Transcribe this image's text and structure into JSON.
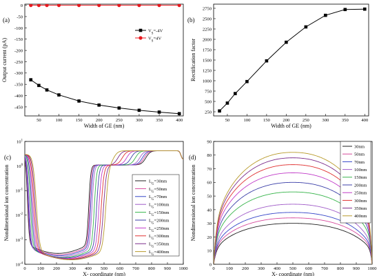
{
  "chart_data": [
    {
      "id": "a",
      "panel_label": "(a)",
      "type": "line",
      "xlabel": "Width of GE (nm)",
      "ylabel": "Output current (pA)",
      "xlim": [
        15,
        410
      ],
      "ylim": [
        -490,
        5
      ],
      "xticks": [
        50,
        100,
        150,
        200,
        250,
        300,
        350,
        400
      ],
      "yticks": [
        0,
        -50,
        -100,
        -150,
        -200,
        -250,
        -300,
        -350,
        -400,
        -450
      ],
      "x": [
        30,
        50,
        70,
        100,
        150,
        200,
        250,
        300,
        350,
        400
      ],
      "series": [
        {
          "name_main": "V",
          "name_sub": "S",
          "name_tail": "=-4V",
          "color": "#000000",
          "marker": "square",
          "values": [
            -330,
            -355,
            -375,
            -397,
            -424,
            -442,
            -455,
            -465,
            -473,
            -480
          ]
        },
        {
          "name_main": "V",
          "name_sub": "S",
          "name_tail": "=4V",
          "color": "#e8191f",
          "marker": "circle",
          "values": [
            0,
            0,
            0,
            0,
            0,
            0,
            0,
            0,
            0,
            0
          ]
        }
      ]
    },
    {
      "id": "b",
      "panel_label": "(b)",
      "type": "line",
      "xlabel": "Width of GE (nm)",
      "ylabel": "Rectification factor",
      "xlim": [
        15,
        410
      ],
      "ylim": [
        150,
        2850
      ],
      "xticks": [
        50,
        100,
        150,
        200,
        250,
        300,
        350,
        400
      ],
      "yticks": [
        250,
        500,
        750,
        1000,
        1250,
        1500,
        1750,
        2000,
        2250,
        2500,
        2750
      ],
      "x": [
        30,
        50,
        70,
        100,
        150,
        200,
        250,
        300,
        350,
        400
      ],
      "series": [
        {
          "color": "#000000",
          "marker": "square",
          "values": [
            270,
            460,
            690,
            980,
            1480,
            1930,
            2300,
            2580,
            2720,
            2730
          ]
        }
      ]
    },
    {
      "id": "c",
      "panel_label": "(c)",
      "type": "line",
      "scale_y": "log",
      "xlabel": "X- coordinate (nm)",
      "ylabel": "Nondimensional ion concentration",
      "xlim": [
        0,
        1000
      ],
      "ylim": [
        0.0001,
        10
      ],
      "xticks": [
        0,
        100,
        200,
        300,
        400,
        500,
        600,
        700,
        800,
        900,
        1000
      ],
      "yticks": [
        {
          "v": 0.0001,
          "base": "10",
          "exp": "-4"
        },
        {
          "v": 0.001,
          "base": "10",
          "exp": "-3"
        },
        {
          "v": 0.01,
          "base": "10",
          "exp": "-2"
        },
        {
          "v": 0.1,
          "base": "10",
          "exp": "-1"
        },
        {
          "v": 1,
          "base": "10",
          "exp": "0"
        },
        {
          "v": 10,
          "base": "10",
          "exp": "1"
        }
      ],
      "series": [
        {
          "name_main": "L",
          "name_sub": "G",
          "name_tail": "=30nm",
          "color": "#1f1f1f",
          "L": 30,
          "min": 0.00062
        },
        {
          "name_main": "L",
          "name_sub": "G",
          "name_tail": "=50nm",
          "color": "#d6489b",
          "L": 50,
          "min": 0.00055
        },
        {
          "name_main": "L",
          "name_sub": "G",
          "name_tail": "=70nm",
          "color": "#3445c8",
          "L": 70,
          "min": 0.0005
        },
        {
          "name_main": "L",
          "name_sub": "G",
          "name_tail": "=100nm",
          "color": "#a05bc8",
          "L": 100,
          "min": 0.00045
        },
        {
          "name_main": "L",
          "name_sub": "G",
          "name_tail": "=150nm",
          "color": "#36b44a",
          "L": 150,
          "min": 0.00042
        },
        {
          "name_main": "L",
          "name_sub": "G",
          "name_tail": "=200nm",
          "color": "#3b3fa8",
          "L": 200,
          "min": 0.0004
        },
        {
          "name_main": "L",
          "name_sub": "G",
          "name_tail": "=250nm",
          "color": "#c03ac8",
          "L": 250,
          "min": 0.00038
        },
        {
          "name_main": "L",
          "name_sub": "G",
          "name_tail": "=300nm",
          "color": "#e03030",
          "L": 300,
          "min": 0.00036
        },
        {
          "name_main": "L",
          "name_sub": "G",
          "name_tail": "=350nm",
          "color": "#7a2a8a",
          "L": 350,
          "min": 0.00035
        },
        {
          "name_main": "L",
          "name_sub": "G",
          "name_tail": "=400nm",
          "color": "#b89a2a",
          "L": 400,
          "min": 0.00034
        }
      ]
    },
    {
      "id": "d",
      "panel_label": "(d)",
      "type": "line",
      "xlabel": "X- coordinate (nm)",
      "ylabel": "Nondimensional ion concentration",
      "xlim": [
        0,
        1000
      ],
      "ylim": [
        0,
        90
      ],
      "xticks": [
        0,
        100,
        200,
        300,
        400,
        500,
        600,
        700,
        800,
        900,
        1000
      ],
      "yticks": [
        0,
        10,
        20,
        30,
        40,
        50,
        60,
        70,
        80,
        90
      ],
      "series": [
        {
          "name": "30nm",
          "color": "#1f1f1f",
          "peak": 30
        },
        {
          "name": "50nm",
          "color": "#d6489b",
          "peak": 34
        },
        {
          "name": "70nm",
          "color": "#3445c8",
          "peak": 38
        },
        {
          "name": "100nm",
          "color": "#a05bc8",
          "peak": 44
        },
        {
          "name": "150nm",
          "color": "#36b44a",
          "peak": 53
        },
        {
          "name": "200nm",
          "color": "#3b3fa8",
          "peak": 60
        },
        {
          "name": "250nm",
          "color": "#c03ac8",
          "peak": 67
        },
        {
          "name": "300nm",
          "color": "#e03030",
          "peak": 73
        },
        {
          "name": "350nm",
          "color": "#7a2a8a",
          "peak": 78
        },
        {
          "name": "400nm",
          "color": "#b89a2a",
          "peak": 82
        }
      ]
    }
  ]
}
